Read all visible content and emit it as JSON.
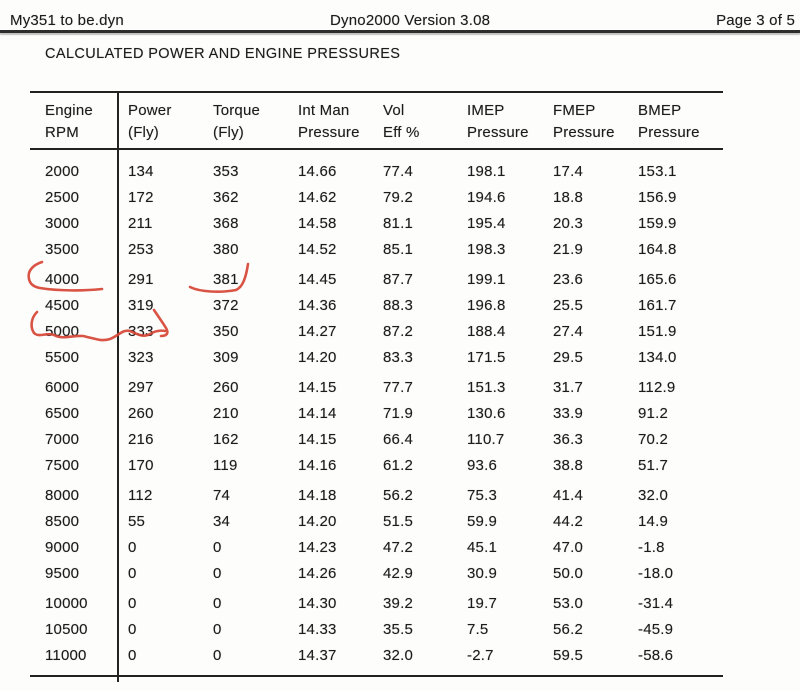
{
  "page_header": {
    "left": "My351 to be.dyn",
    "center": "Dyno2000  Version 3.08",
    "right": "Page 3 of 5"
  },
  "title": "CALCULATED POWER AND ENGINE PRESSURES",
  "table": {
    "column_keys": [
      "rpm",
      "power",
      "torque",
      "int_man_pressure",
      "vol_eff",
      "imep_pressure",
      "fmep_pressure",
      "bmep_pressure"
    ],
    "columns": [
      {
        "line1": "Engine",
        "line2": "RPM"
      },
      {
        "line1": "Power",
        "line2": "(Fly)"
      },
      {
        "line1": "Torque",
        "line2": "(Fly)"
      },
      {
        "line1": "Int Man",
        "line2": "Pressure"
      },
      {
        "line1": "Vol",
        "line2": "Eff %"
      },
      {
        "line1": "IMEP",
        "line2": "Pressure"
      },
      {
        "line1": "FMEP",
        "line2": "Pressure"
      },
      {
        "line1": "BMEP",
        "line2": "Pressure"
      }
    ],
    "groups": [
      [
        [
          "2000",
          "134",
          "353",
          "14.66",
          "77.4",
          "198.1",
          "17.4",
          "153.1"
        ],
        [
          "2500",
          "172",
          "362",
          "14.62",
          "79.2",
          "194.6",
          "18.8",
          "156.9"
        ],
        [
          "3000",
          "211",
          "368",
          "14.58",
          "81.1",
          "195.4",
          "20.3",
          "159.9"
        ],
        [
          "3500",
          "253",
          "380",
          "14.52",
          "85.1",
          "198.3",
          "21.9",
          "164.8"
        ]
      ],
      [
        [
          "4000",
          "291",
          "381",
          "14.45",
          "87.7",
          "199.1",
          "23.6",
          "165.6"
        ],
        [
          "4500",
          "319",
          "372",
          "14.36",
          "88.3",
          "196.8",
          "25.5",
          "161.7"
        ],
        [
          "5000",
          "333",
          "350",
          "14.27",
          "87.2",
          "188.4",
          "27.4",
          "151.9"
        ],
        [
          "5500",
          "323",
          "309",
          "14.20",
          "83.3",
          "171.5",
          "29.5",
          "134.0"
        ]
      ],
      [
        [
          "6000",
          "297",
          "260",
          "14.15",
          "77.7",
          "151.3",
          "31.7",
          "112.9"
        ],
        [
          "6500",
          "260",
          "210",
          "14.14",
          "71.9",
          "130.6",
          "33.9",
          "91.2"
        ],
        [
          "7000",
          "216",
          "162",
          "14.15",
          "66.4",
          "110.7",
          "36.3",
          "70.2"
        ],
        [
          "7500",
          "170",
          "119",
          "14.16",
          "61.2",
          "93.6",
          "38.8",
          "51.7"
        ]
      ],
      [
        [
          "8000",
          "112",
          "74",
          "14.18",
          "56.2",
          "75.3",
          "41.4",
          "32.0"
        ],
        [
          "8500",
          "55",
          "34",
          "14.20",
          "51.5",
          "59.9",
          "44.2",
          "14.9"
        ],
        [
          "9000",
          "0",
          "0",
          "14.23",
          "47.2",
          "45.1",
          "47.0",
          "-1.8"
        ],
        [
          "9500",
          "0",
          "0",
          "14.26",
          "42.9",
          "30.9",
          "50.0",
          "-18.0"
        ]
      ],
      [
        [
          "10000",
          "0",
          "0",
          "14.30",
          "39.2",
          "19.7",
          "53.0",
          "-31.4"
        ],
        [
          "10500",
          "0",
          "0",
          "14.33",
          "35.5",
          "7.5",
          "56.2",
          "-45.9"
        ],
        [
          "11000",
          "0",
          "0",
          "14.37",
          "32.0",
          "-2.7",
          "59.5",
          "-58.6"
        ]
      ]
    ]
  },
  "annotations": {
    "color": "#d64535",
    "marks": [
      {
        "name": "underline-hook-4000-rpm",
        "target": "4000"
      },
      {
        "name": "underline-hook-381-torque",
        "target": "381"
      },
      {
        "name": "squiggle-underline-5000-rpm-333-power",
        "target": "5000 / 333"
      }
    ]
  }
}
